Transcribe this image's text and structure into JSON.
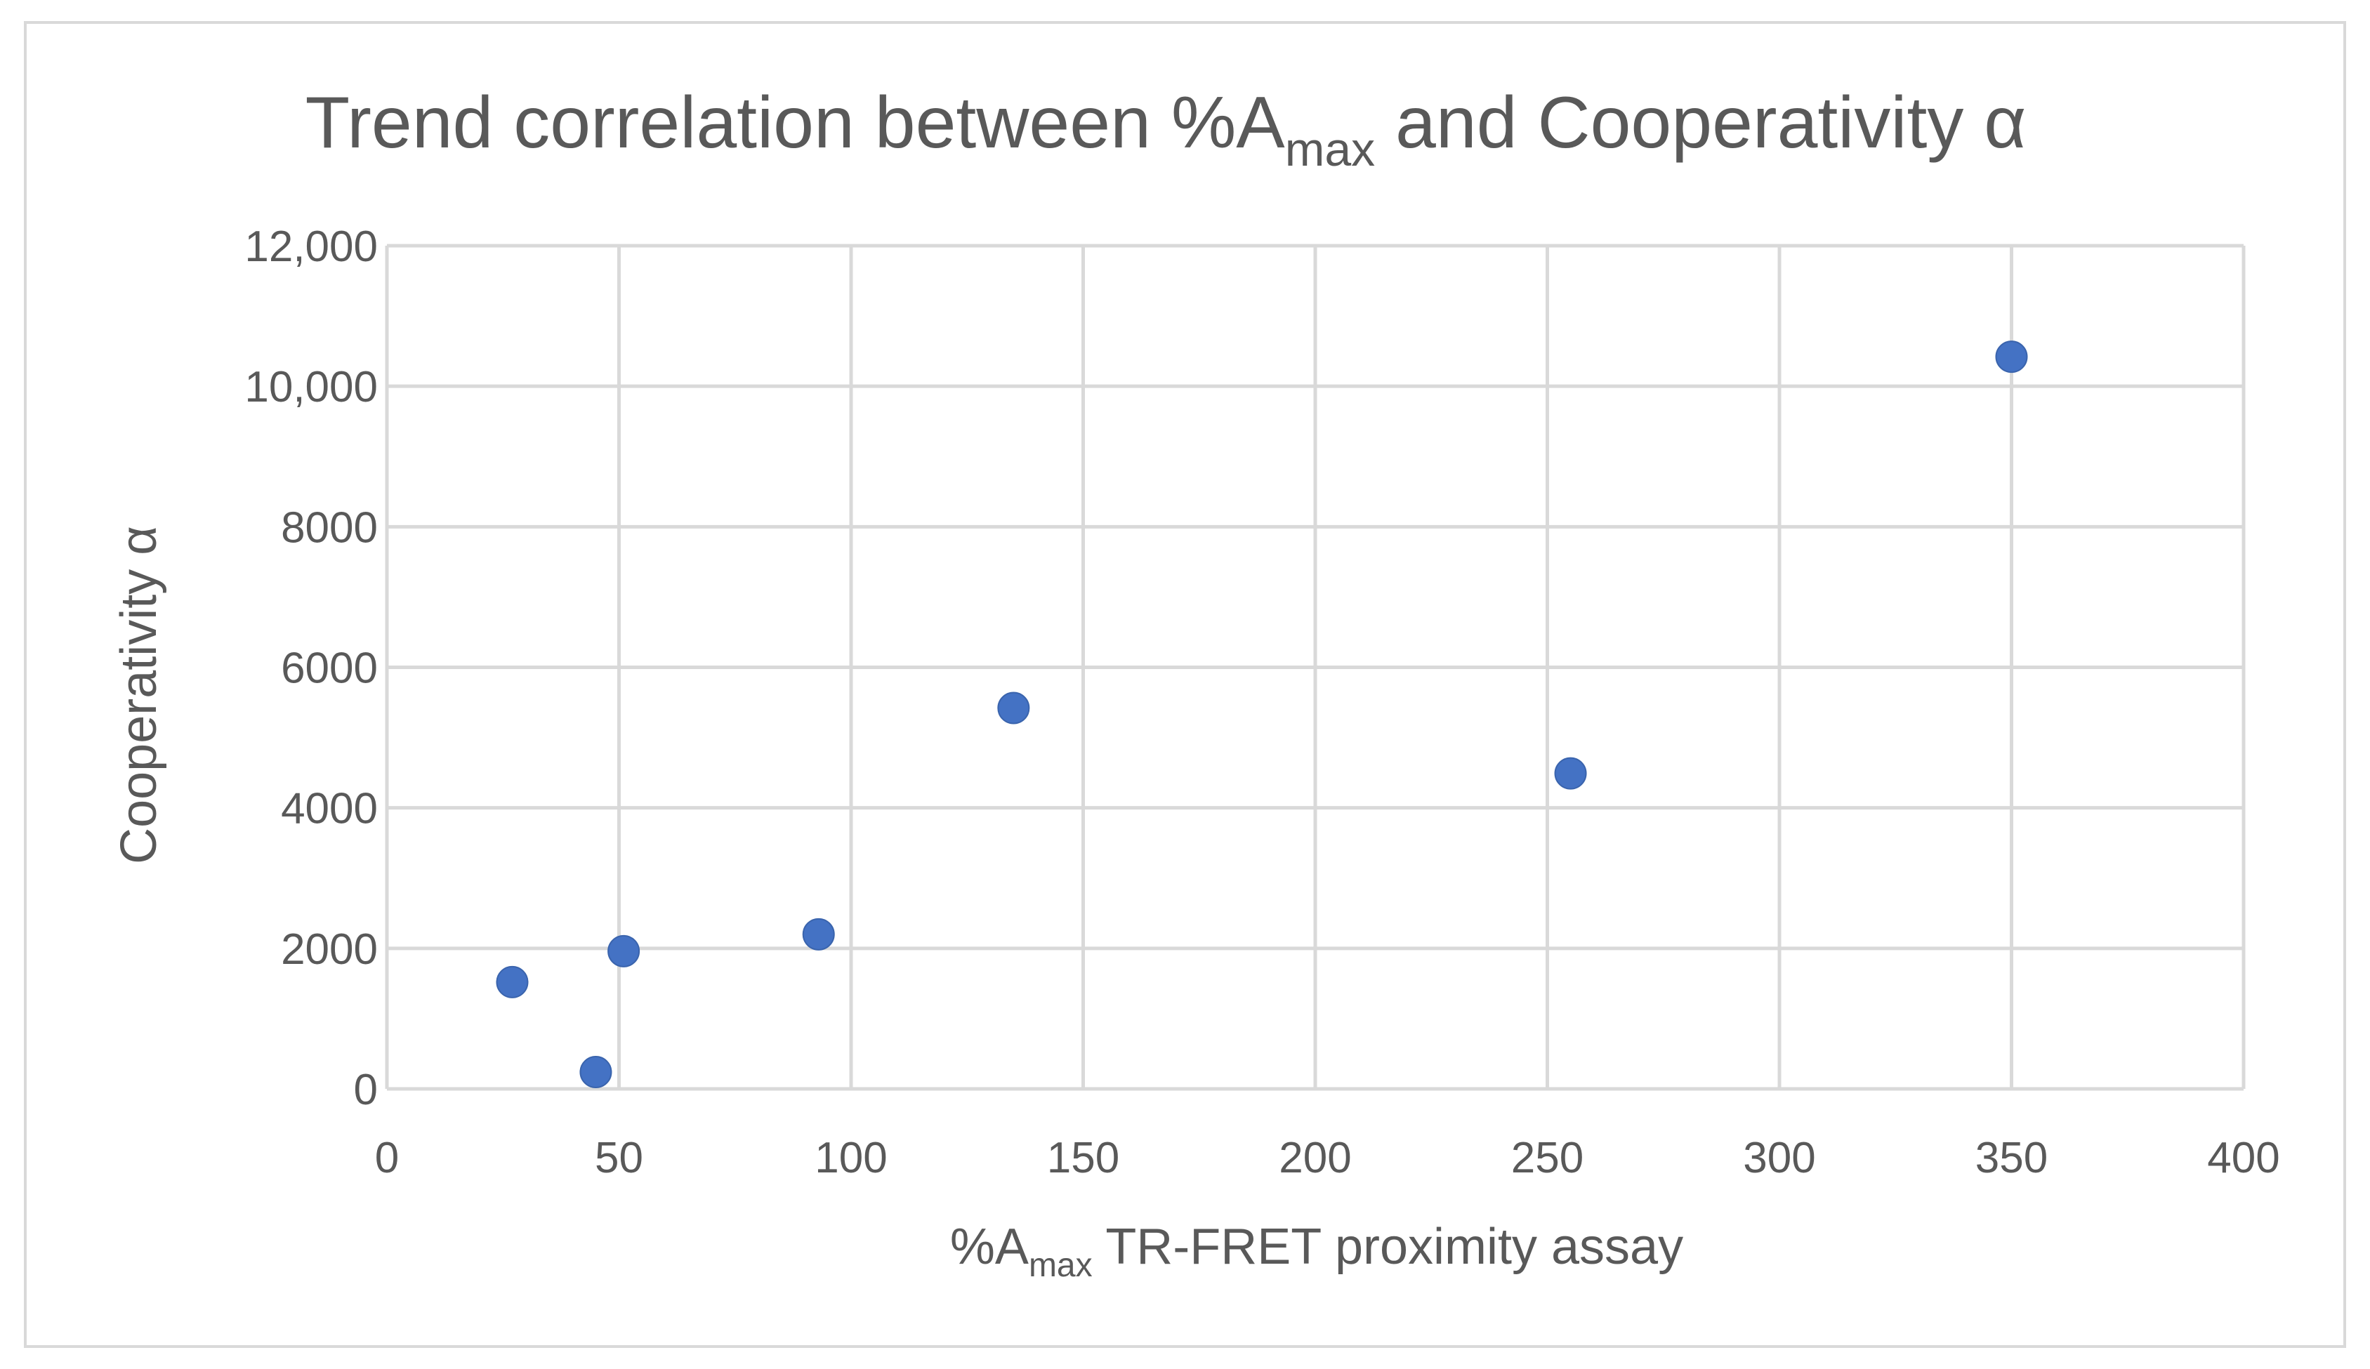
{
  "chart_data": {
    "type": "scatter",
    "title": {
      "pre": "Trend correlation between %A",
      "sub": "max",
      "post": " and Cooperativity α"
    },
    "xlabel": {
      "pre": "%A",
      "sub": "max",
      "post": " TR-FRET proximity assay"
    },
    "ylabel": "Cooperativity α",
    "xlim": [
      0,
      400
    ],
    "ylim": [
      0,
      12000
    ],
    "x_ticks": [
      "0",
      "50",
      "100",
      "150",
      "200",
      "250",
      "300",
      "350",
      "400"
    ],
    "y_ticks": [
      "0",
      "2000",
      "4000",
      "6000",
      "8000",
      "10,000",
      "12,000"
    ],
    "grid": true,
    "legend": "none",
    "marker_color": "#4472c4",
    "points": [
      {
        "x": 27,
        "y": 1520
      },
      {
        "x": 45,
        "y": 240
      },
      {
        "x": 51,
        "y": 1960
      },
      {
        "x": 93,
        "y": 2200
      },
      {
        "x": 135,
        "y": 5420
      },
      {
        "x": 255,
        "y": 4490
      },
      {
        "x": 350,
        "y": 10420
      }
    ]
  }
}
